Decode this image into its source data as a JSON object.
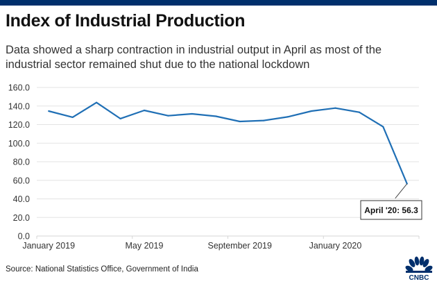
{
  "header": {
    "title": "Index of Industrial Production",
    "subtitle": "Data showed a sharp contraction in industrial output in April as most of the industrial sector remained shut due to the national lockdown"
  },
  "footer": {
    "source": "Source: National Statistics Office, Government of India",
    "logo_text": "CNBC"
  },
  "colors": {
    "brand_navy": "#002f6c",
    "line": "#1f6fb5",
    "grid": "#e3e3e3"
  },
  "chart_data": {
    "type": "line",
    "title": "Index of Industrial Production",
    "xlabel": "",
    "ylabel": "",
    "ylim": [
      0,
      160
    ],
    "yticks": [
      0,
      20,
      40,
      60,
      80,
      100,
      120,
      140,
      160
    ],
    "ytick_labels": [
      "0.0",
      "20.0",
      "40.0",
      "60.0",
      "80.0",
      "100.0",
      "120.0",
      "140.0",
      "160.0"
    ],
    "grid": true,
    "x": [
      "Jan 2019",
      "Feb 2019",
      "Mar 2019",
      "Apr 2019",
      "May 2019",
      "Jun 2019",
      "Jul 2019",
      "Aug 2019",
      "Sep 2019",
      "Oct 2019",
      "Nov 2019",
      "Dec 2019",
      "Jan 2020",
      "Feb 2020",
      "Mar 2020",
      "Apr 2020"
    ],
    "xtick_labels": [
      {
        "index": 0,
        "label": "January 2019"
      },
      {
        "index": 4,
        "label": "May 2019"
      },
      {
        "index": 8,
        "label": "September 2019"
      },
      {
        "index": 12,
        "label": "January 2020"
      }
    ],
    "series": [
      {
        "name": "Index of Industrial Production",
        "values": [
          134.6,
          127.9,
          143.8,
          126.4,
          135.3,
          129.6,
          131.6,
          129.0,
          123.4,
          124.4,
          128.3,
          134.6,
          137.8,
          133.3,
          117.7,
          56.3
        ]
      }
    ],
    "annotations": [
      {
        "index": 15,
        "text": "April '20: 56.3",
        "placement": "bottom-right"
      }
    ]
  }
}
